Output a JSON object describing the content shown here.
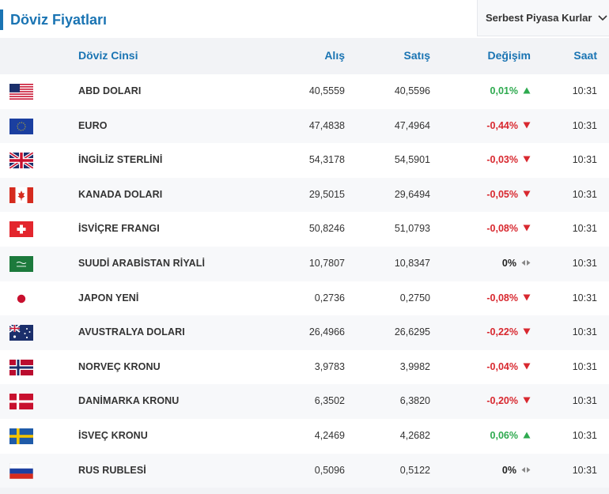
{
  "header": {
    "title": "Döviz Fiyatları",
    "dropdown_label": "Serbest Piyasa Kurlar"
  },
  "columns": {
    "name": "Döviz Cinsi",
    "buy": "Alış",
    "sell": "Satış",
    "change": "Değişim",
    "time": "Saat"
  },
  "colors": {
    "accent": "#1a74b3",
    "up": "#2eaa4f",
    "down": "#d8282f"
  },
  "rows": [
    {
      "flag": "us-flag-icon",
      "name": "ABD DOLARI",
      "buy": "40,5559",
      "sell": "40,5596",
      "change": "0,01%",
      "direction": "up",
      "time": "10:31"
    },
    {
      "flag": "eu-flag-icon",
      "name": "EURO",
      "buy": "47,4838",
      "sell": "47,4964",
      "change": "-0,44%",
      "direction": "down",
      "time": "10:31"
    },
    {
      "flag": "uk-flag-icon",
      "name": "İNGİLİZ STERLİNİ",
      "buy": "54,3178",
      "sell": "54,5901",
      "change": "-0,03%",
      "direction": "down",
      "time": "10:31"
    },
    {
      "flag": "ca-flag-icon",
      "name": "KANADA DOLARI",
      "buy": "29,5015",
      "sell": "29,6494",
      "change": "-0,05%",
      "direction": "down",
      "time": "10:31"
    },
    {
      "flag": "ch-flag-icon",
      "name": "İSVİÇRE FRANGI",
      "buy": "50,8246",
      "sell": "51,0793",
      "change": "-0,08%",
      "direction": "down",
      "time": "10:31"
    },
    {
      "flag": "sa-flag-icon",
      "name": "SUUDİ ARABİSTAN RİYALİ",
      "buy": "10,7807",
      "sell": "10,8347",
      "change": "0%",
      "direction": "flat",
      "time": "10:31"
    },
    {
      "flag": "jp-flag-icon",
      "name": "JAPON YENİ",
      "buy": "0,2736",
      "sell": "0,2750",
      "change": "-0,08%",
      "direction": "down",
      "time": "10:31"
    },
    {
      "flag": "au-flag-icon",
      "name": "AVUSTRALYA DOLARI",
      "buy": "26,4966",
      "sell": "26,6295",
      "change": "-0,22%",
      "direction": "down",
      "time": "10:31"
    },
    {
      "flag": "no-flag-icon",
      "name": "NORVEÇ KRONU",
      "buy": "3,9783",
      "sell": "3,9982",
      "change": "-0,04%",
      "direction": "down",
      "time": "10:31"
    },
    {
      "flag": "dk-flag-icon",
      "name": "DANİMARKA KRONU",
      "buy": "6,3502",
      "sell": "6,3820",
      "change": "-0,20%",
      "direction": "down",
      "time": "10:31"
    },
    {
      "flag": "se-flag-icon",
      "name": "İSVEÇ KRONU",
      "buy": "4,2469",
      "sell": "4,2682",
      "change": "0,06%",
      "direction": "up",
      "time": "10:31"
    },
    {
      "flag": "ru-flag-icon",
      "name": "RUS RUBLESİ",
      "buy": "0,5096",
      "sell": "0,5122",
      "change": "0%",
      "direction": "flat",
      "time": "10:31"
    }
  ]
}
